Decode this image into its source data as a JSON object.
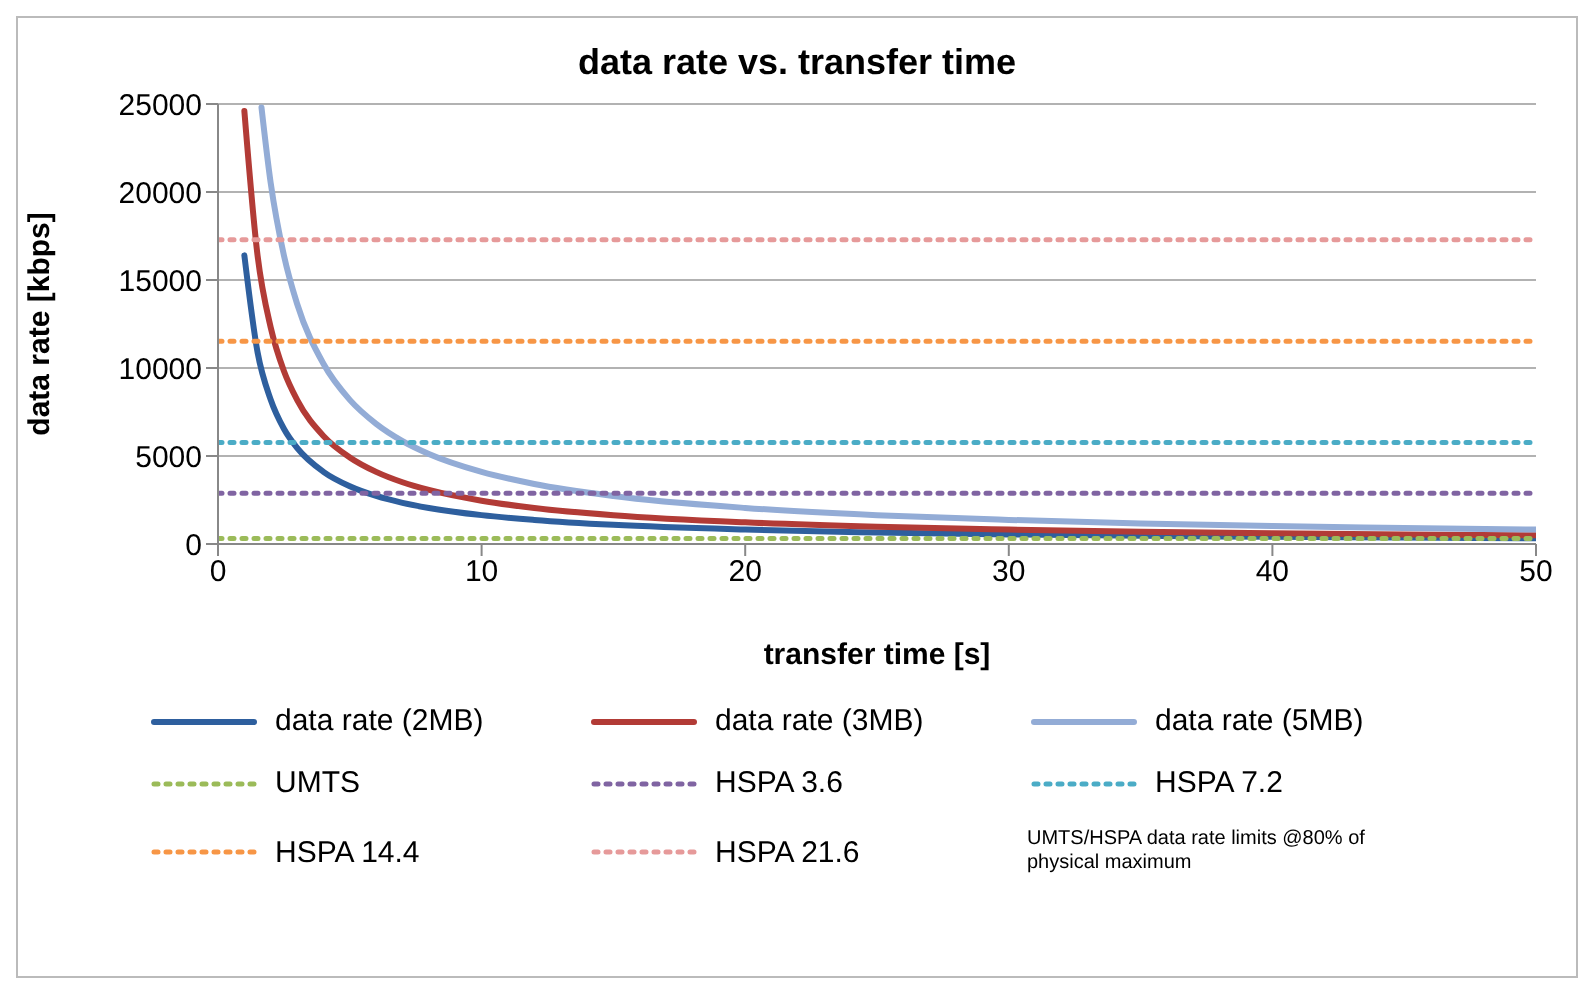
{
  "chart_data": {
    "type": "line",
    "title": "data rate vs. transfer time",
    "xlabel": "transfer time [s]",
    "ylabel": "data rate [kbps]",
    "xlim": [
      0,
      50
    ],
    "xticks": [
      0,
      10,
      20,
      30,
      40,
      50
    ],
    "ylim": [
      0,
      25000
    ],
    "yticks": [
      0,
      5000,
      10000,
      15000,
      20000,
      25000
    ],
    "grid": "y",
    "legend": "bottom",
    "marker": "none",
    "series": [
      {
        "name": "data rate (2MB)",
        "color": "#2e5f9e",
        "line_style": "solid",
        "x": [
          1,
          1.5,
          2,
          2.5,
          3,
          4,
          5,
          6,
          7,
          8,
          10,
          12,
          15,
          20,
          25,
          30,
          35,
          40,
          45,
          50
        ],
        "values": [
          16400,
          10900,
          8200,
          6550,
          5460,
          4100,
          3280,
          2730,
          2340,
          2050,
          1640,
          1370,
          1090,
          820,
          655,
          546,
          468,
          410,
          364,
          328
        ]
      },
      {
        "name": "data rate (3MB)",
        "color": "#b23b36",
        "line_style": "solid",
        "x": [
          1,
          1.5,
          2,
          2.5,
          3,
          4,
          5,
          6,
          7,
          8,
          10,
          12,
          15,
          20,
          25,
          30,
          35,
          40,
          45,
          50
        ],
        "values": [
          24600,
          16400,
          12300,
          9830,
          8190,
          6140,
          4920,
          4100,
          3510,
          3070,
          2460,
          2050,
          1640,
          1230,
          983,
          819,
          702,
          614,
          546,
          492
        ]
      },
      {
        "name": "data rate (5MB)",
        "color": "#93acd6",
        "line_style": "solid",
        "x": [
          1.65,
          2,
          2.5,
          3,
          4,
          5,
          6,
          7,
          8,
          10,
          12,
          15,
          20,
          25,
          30,
          35,
          40,
          45,
          50
        ],
        "values": [
          24800,
          20500,
          16400,
          13650,
          10240,
          8190,
          6830,
          5850,
          5120,
          4100,
          3410,
          2730,
          2050,
          1640,
          1370,
          1170,
          1020,
          910,
          820
        ]
      },
      {
        "name": "UMTS",
        "color": "#9bbb59",
        "line_style": "dotted",
        "x": [
          0,
          50
        ],
        "values": [
          307,
          307
        ]
      },
      {
        "name": "HSPA 3.6",
        "color": "#8064a2",
        "line_style": "dotted",
        "x": [
          0,
          50
        ],
        "values": [
          2880,
          2880
        ]
      },
      {
        "name": "HSPA 7.2",
        "color": "#4bacc6",
        "line_style": "dotted",
        "x": [
          0,
          50
        ],
        "values": [
          5760,
          5760
        ]
      },
      {
        "name": "HSPA 14.4",
        "color": "#f79646",
        "line_style": "dotted",
        "x": [
          0,
          50
        ],
        "values": [
          11520,
          11520
        ]
      },
      {
        "name": "HSPA 21.6",
        "color": "#e69a9a",
        "line_style": "dotted",
        "x": [
          0,
          50
        ],
        "values": [
          17280,
          17280
        ]
      }
    ],
    "annotations": [
      "UMTS/HSPA data rate limits @80% of physical maximum"
    ]
  }
}
